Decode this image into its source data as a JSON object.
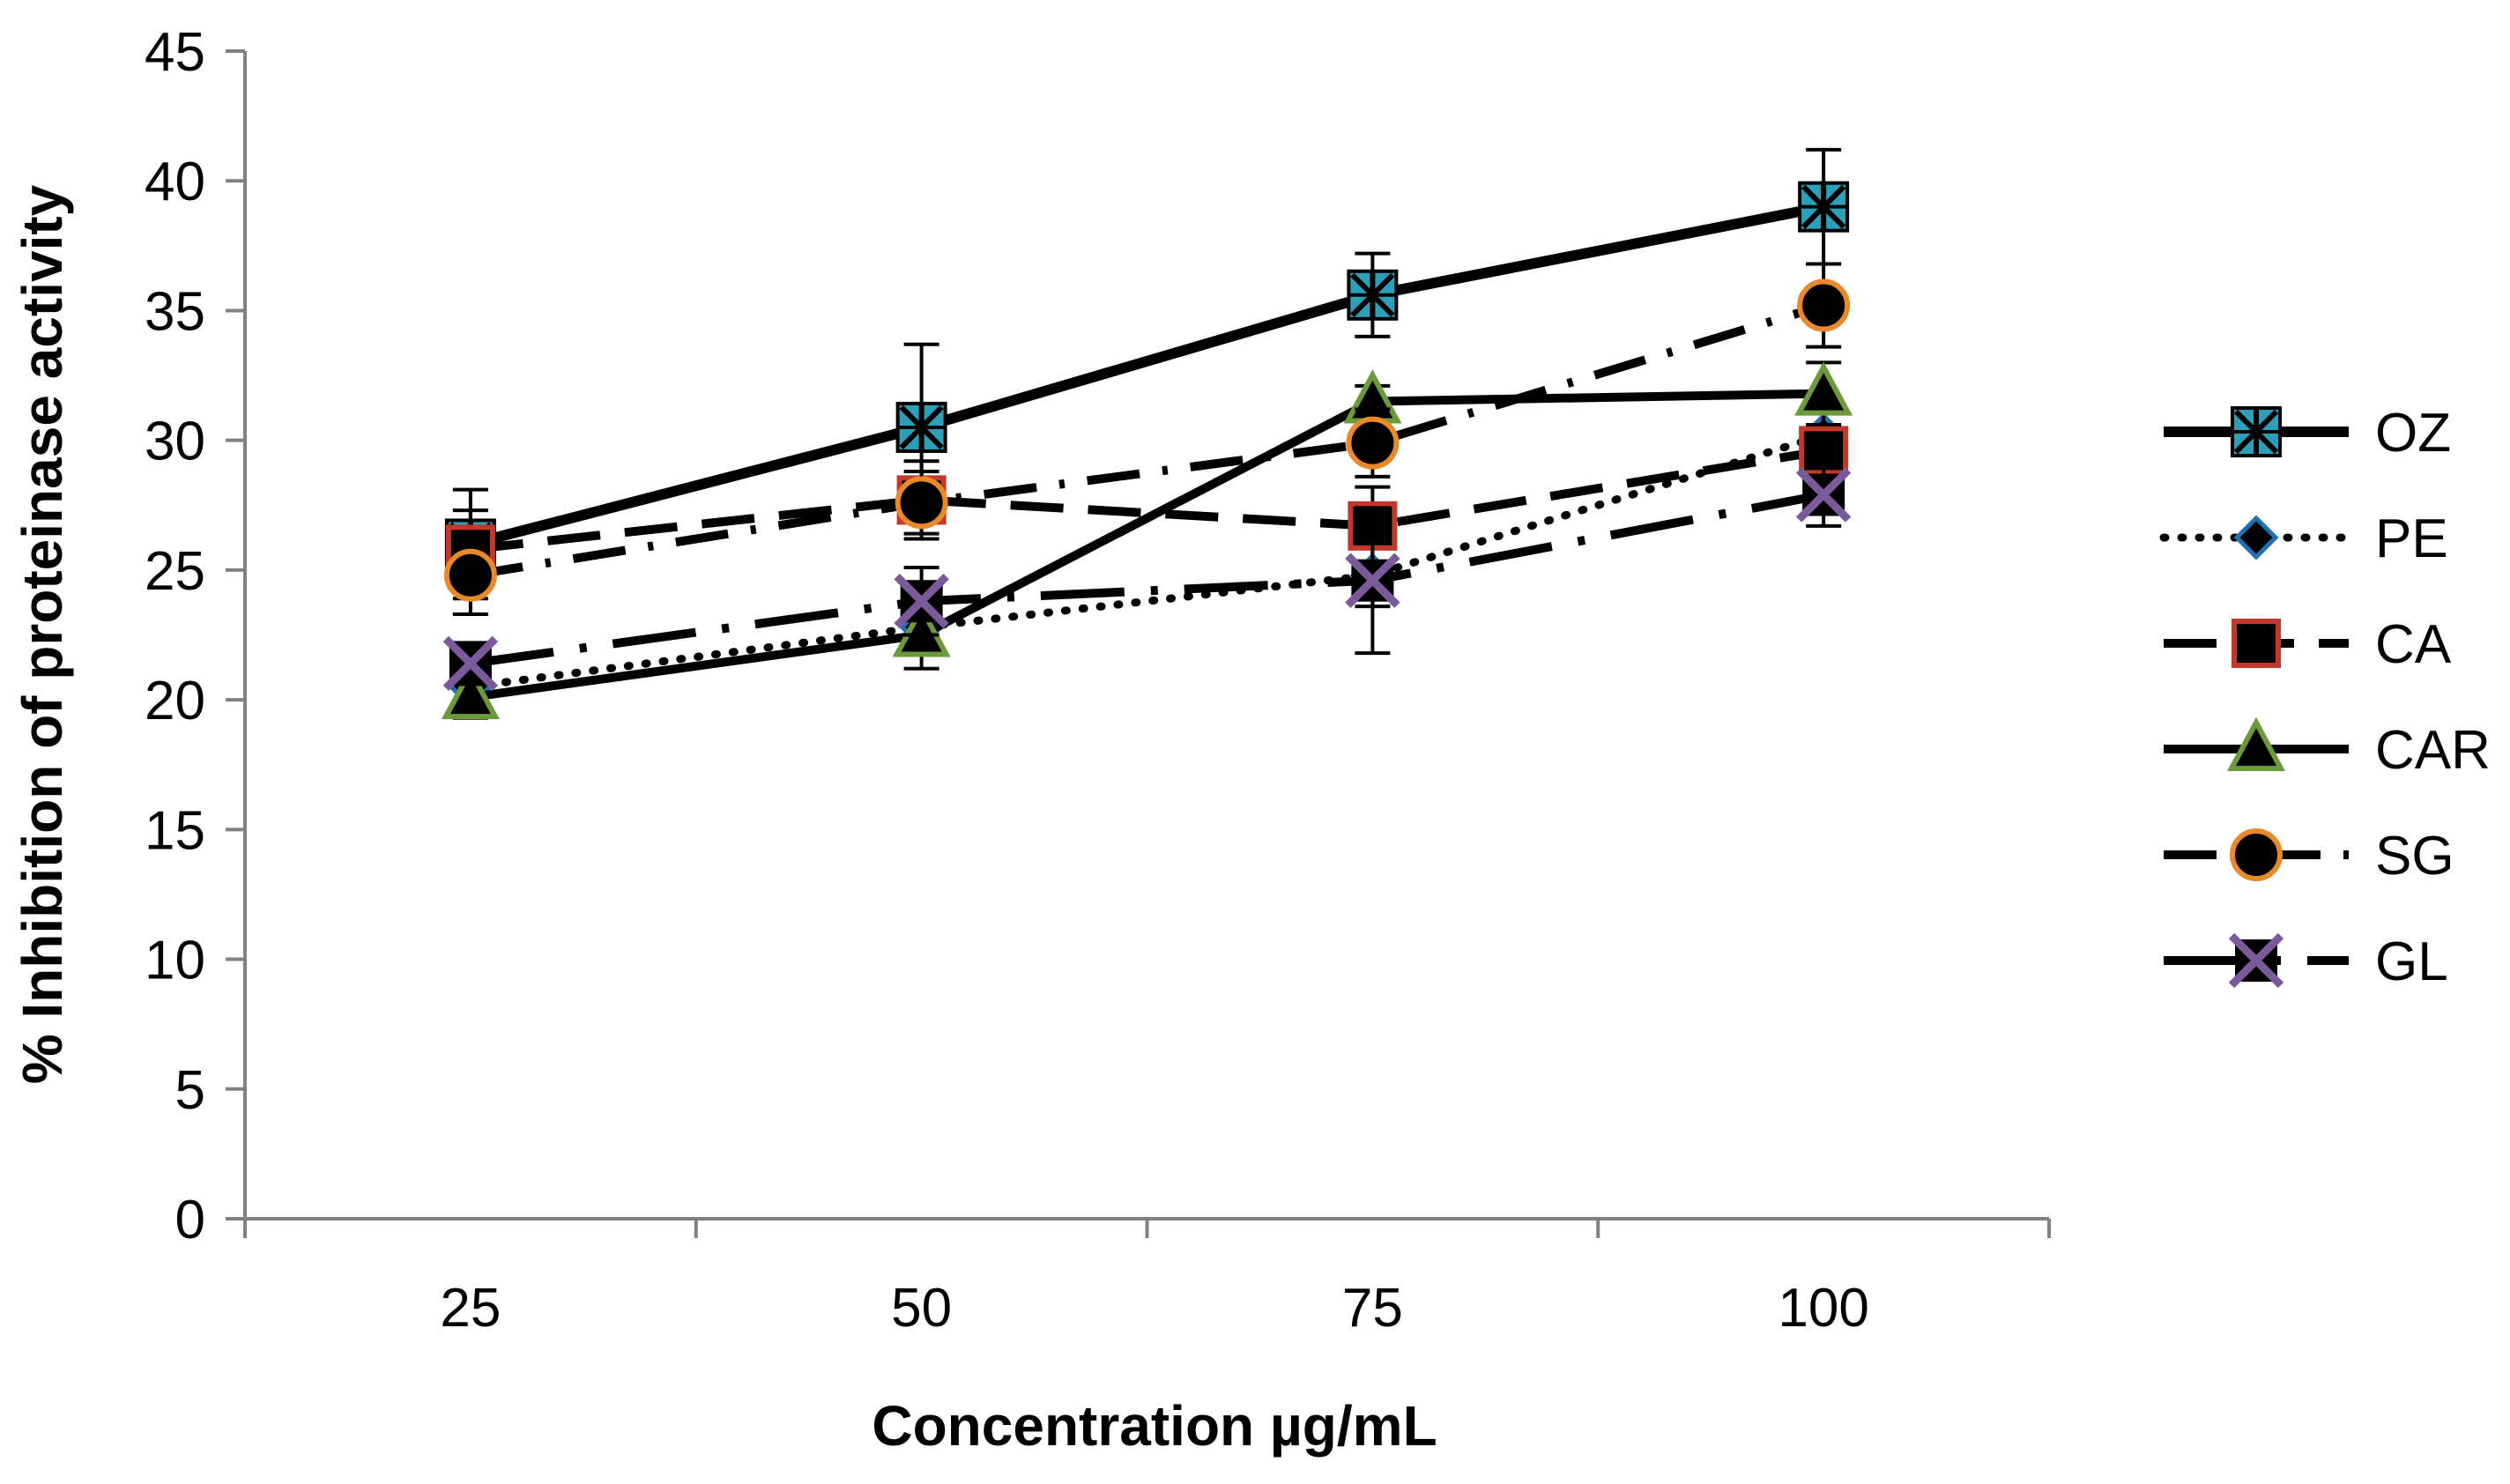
{
  "chart_data": {
    "type": "line",
    "title": "",
    "xlabel": "Concentration µg/mL",
    "ylabel": "% Inhibition of proteinase activity",
    "categories": [
      "25",
      "50",
      "75",
      "100"
    ],
    "yticks": [
      "0",
      "5",
      "10",
      "15",
      "20",
      "25",
      "30",
      "35",
      "40",
      "45"
    ],
    "ylim": [
      0,
      45
    ],
    "grid": false,
    "legend_position": "right",
    "series": [
      {
        "name": "OZ",
        "values": [
          26.0,
          30.5,
          35.6,
          39.0
        ],
        "errors": [
          2.1,
          3.2,
          1.6,
          2.2
        ],
        "marker": "asterisk-square",
        "line": "solid-thick",
        "marker_edge": "#2ca0b8",
        "marker_fill": "#2ca0b8"
      },
      {
        "name": "PE",
        "values": [
          20.5,
          22.8,
          24.8,
          30.2
        ],
        "errors": [
          0.8,
          1.0,
          1.2,
          1.5
        ],
        "marker": "diamond",
        "line": "dotted",
        "marker_edge": "#1f6fb5",
        "marker_fill": "#000000"
      },
      {
        "name": "CA",
        "values": [
          25.8,
          27.7,
          26.7,
          29.6
        ],
        "errors": [
          1.5,
          1.5,
          1.5,
          1.5
        ],
        "marker": "square",
        "line": "dashed",
        "marker_edge": "#c0392b",
        "marker_fill": "#000000"
      },
      {
        "name": "CAR",
        "values": [
          20.1,
          22.5,
          31.5,
          31.8
        ],
        "errors": [
          0.8,
          1.3,
          0.6,
          1.2
        ],
        "marker": "triangle",
        "line": "solid",
        "marker_edge": "#6a9a3a",
        "marker_fill": "#000000"
      },
      {
        "name": "SG",
        "values": [
          24.8,
          27.6,
          29.9,
          35.2
        ],
        "errors": [
          1.5,
          1.2,
          1.3,
          1.6
        ],
        "marker": "circle",
        "line": "dash-dot",
        "marker_edge": "#e8892a",
        "marker_fill": "#000000"
      },
      {
        "name": "GL",
        "values": [
          21.4,
          23.8,
          24.6,
          27.9
        ],
        "errors": [
          0.8,
          1.3,
          2.8,
          1.2
        ],
        "marker": "x-square",
        "line": "long-dash-dot",
        "marker_edge": "#7a5a9a",
        "marker_fill": "#000000"
      }
    ]
  }
}
